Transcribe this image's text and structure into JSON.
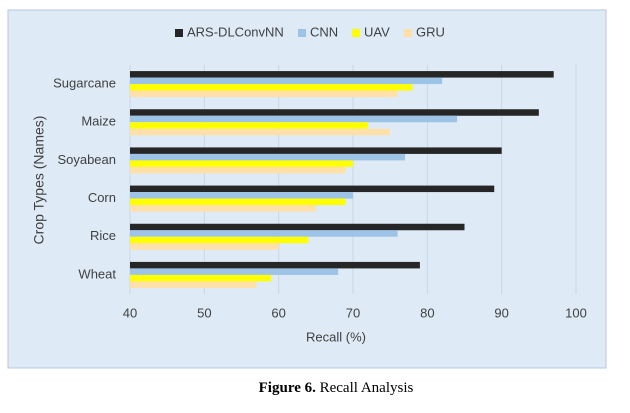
{
  "chart_data": {
    "type": "bar",
    "orientation": "horizontal",
    "categories": [
      "Sugarcane",
      "Maize",
      "Soyabean",
      "Corn",
      "Rice",
      "Wheat"
    ],
    "series": [
      {
        "name": "ARS-DLConvNN",
        "color": "#262626",
        "values": [
          97,
          95,
          90,
          89,
          85,
          79
        ]
      },
      {
        "name": "CNN",
        "color": "#9dc3e6",
        "values": [
          82,
          84,
          77,
          70,
          76,
          68
        ]
      },
      {
        "name": "UAV",
        "color": "#ffff00",
        "values": [
          78,
          72,
          70,
          69,
          64,
          59
        ]
      },
      {
        "name": "GRU",
        "color": "#ffe0a8",
        "values": [
          76,
          75,
          69,
          65,
          60,
          57
        ]
      }
    ],
    "xlim": [
      40,
      100
    ],
    "xticks": [
      40,
      50,
      60,
      70,
      80,
      90,
      100
    ],
    "x_label": "Recall (%)",
    "y_label": "Crop Types (Names)",
    "grid": true,
    "legend": "top",
    "figure_label": "Figure 6.",
    "caption": "Recall Analysis"
  }
}
